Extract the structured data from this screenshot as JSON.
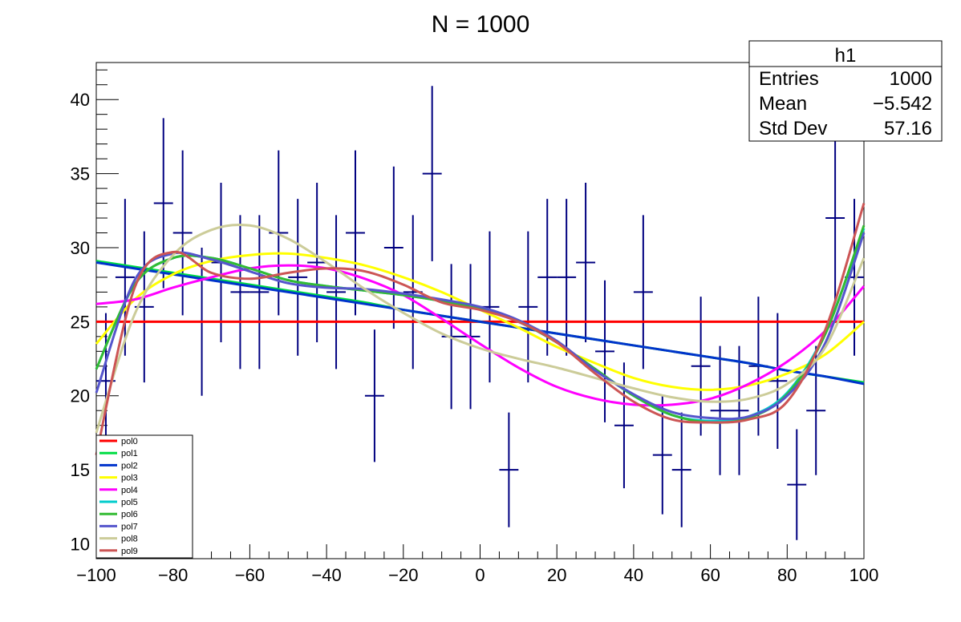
{
  "chart_data": {
    "type": "line",
    "title": "N = 1000",
    "xlim": [
      -100,
      100
    ],
    "ylim": [
      9,
      42.5
    ],
    "x_ticks": [
      -100,
      -80,
      -60,
      -40,
      -20,
      0,
      20,
      40,
      60,
      80,
      100
    ],
    "y_ticks": [
      10,
      15,
      20,
      25,
      30,
      35,
      40
    ],
    "x_tick_labels": [
      "−100",
      "−80",
      "−60",
      "−40",
      "−20",
      "0",
      "20",
      "40",
      "60",
      "80",
      "100"
    ],
    "y_tick_labels": [
      "10",
      "15",
      "20",
      "25",
      "30",
      "35",
      "40"
    ],
    "histogram": {
      "bin_centers": [
        -97.5,
        -92.5,
        -87.5,
        -82.5,
        -77.5,
        -72.5,
        -67.5,
        -62.5,
        -57.5,
        -52.5,
        -47.5,
        -42.5,
        -37.5,
        -32.5,
        -27.5,
        -22.5,
        -17.5,
        -12.5,
        -7.5,
        -2.5,
        2.5,
        7.5,
        12.5,
        17.5,
        22.5,
        27.5,
        32.5,
        37.5,
        42.5,
        47.5,
        52.5,
        57.5,
        62.5,
        67.5,
        72.5,
        77.5,
        82.5,
        87.5,
        92.5,
        97.5
      ],
      "bin_width": 5,
      "values": [
        21,
        28,
        26,
        33,
        31,
        25,
        29,
        27,
        27,
        31,
        28,
        29,
        27,
        31,
        20,
        30,
        27,
        35,
        24,
        24,
        26,
        15,
        26,
        28,
        28,
        29,
        23,
        18,
        27,
        16,
        15,
        22,
        19,
        19,
        22,
        21,
        14,
        19,
        32,
        28
      ],
      "color": "#000080"
    },
    "series": [
      {
        "name": "pol0",
        "color": "#ff0000",
        "values": [
          25,
          25,
          25,
          25,
          25,
          25,
          25,
          25,
          25,
          25,
          25,
          25,
          25,
          25,
          25,
          25,
          25,
          25,
          25,
          25,
          25
        ]
      },
      {
        "name": "pol1",
        "color": "#00dd44",
        "values": [
          29.1,
          28.7,
          28.3,
          27.9,
          27.5,
          27.1,
          26.7,
          26.3,
          25.8,
          25.4,
          25.0,
          24.6,
          24.2,
          23.8,
          23.4,
          23.0,
          22.6,
          22.2,
          21.7,
          21.3,
          20.9
        ]
      },
      {
        "name": "pol2",
        "color": "#0033cc",
        "values": [
          29.0,
          28.6,
          28.2,
          27.8,
          27.4,
          27.0,
          26.6,
          26.2,
          25.8,
          25.4,
          25.0,
          24.6,
          24.2,
          23.8,
          23.4,
          23.0,
          22.6,
          22.2,
          21.7,
          21.3,
          20.8
        ]
      },
      {
        "name": "pol3",
        "color": "#ffff00",
        "values": [
          23.5,
          26.5,
          28.2,
          29.1,
          29.5,
          29.6,
          29.3,
          28.8,
          28.0,
          27.0,
          25.8,
          24.6,
          23.3,
          22.2,
          21.2,
          20.6,
          20.4,
          20.7,
          21.5,
          22.8,
          25.0
        ]
      },
      {
        "name": "pol4",
        "color": "#ff00ff",
        "values": [
          26.2,
          26.5,
          27.3,
          28.0,
          28.6,
          28.8,
          28.6,
          27.9,
          26.8,
          25.2,
          23.5,
          21.9,
          20.6,
          19.8,
          19.4,
          19.4,
          19.8,
          20.8,
          22.3,
          24.4,
          27.4
        ]
      },
      {
        "name": "pol5",
        "color": "#00cccc",
        "values": [
          21.8,
          27.5,
          29.3,
          29.3,
          28.6,
          27.8,
          27.4,
          27.1,
          26.8,
          26.4,
          25.9,
          25.0,
          23.6,
          21.8,
          20.0,
          18.7,
          18.3,
          18.6,
          20.2,
          24.3,
          31.3
        ]
      },
      {
        "name": "pol6",
        "color": "#33bb33",
        "values": [
          21.8,
          27.5,
          29.3,
          29.3,
          28.6,
          27.8,
          27.4,
          27.1,
          26.8,
          26.4,
          25.9,
          25.0,
          23.6,
          21.8,
          20.0,
          18.7,
          18.2,
          18.5,
          20.1,
          24.2,
          31.5
        ]
      },
      {
        "name": "pol7",
        "color": "#5555cc",
        "values": [
          20.2,
          27.8,
          29.6,
          29.2,
          28.4,
          27.6,
          27.3,
          27.2,
          26.9,
          26.5,
          26.0,
          25.1,
          23.7,
          21.7,
          20.1,
          18.9,
          18.5,
          18.6,
          20.0,
          23.6,
          31.0
        ]
      },
      {
        "name": "pol8",
        "color": "#cccc99",
        "values": [
          17.5,
          25.5,
          29.5,
          31.2,
          31.5,
          30.6,
          29.0,
          27.2,
          25.6,
          24.2,
          23.2,
          22.5,
          21.9,
          21.2,
          20.5,
          19.9,
          19.6,
          19.8,
          20.8,
          23.3,
          29.3
        ]
      },
      {
        "name": "pol9",
        "color": "#cc5555",
        "values": [
          16.0,
          27.3,
          29.7,
          28.3,
          27.9,
          28.3,
          28.6,
          28.4,
          27.5,
          26.3,
          25.8,
          25.0,
          23.6,
          21.5,
          19.6,
          18.4,
          18.2,
          18.4,
          19.6,
          24.5,
          33.0
        ]
      }
    ],
    "legend_position": "bottom-left",
    "stats_box": {
      "title": "h1",
      "rows": [
        {
          "label": "Entries",
          "value": "1000"
        },
        {
          "label": "Mean",
          "value": "−5.542"
        },
        {
          "label": "Std Dev",
          "value": "57.16"
        }
      ]
    }
  }
}
